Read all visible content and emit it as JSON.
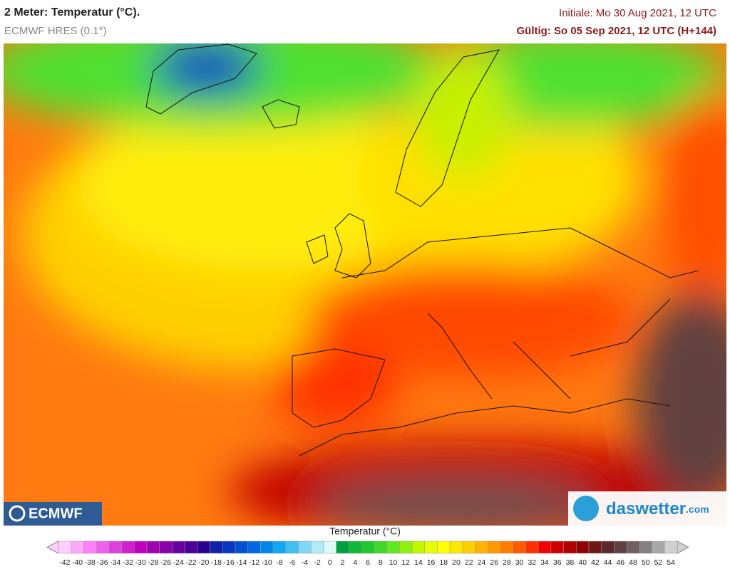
{
  "header": {
    "title": "2 Meter: Temperatur (°C).",
    "subtitle": "ECMWF HRES (0.1°)",
    "initial": "Initiale: Mo 30 Aug 2021, 12 UTC",
    "valid": "Gültig: So 05 Sep 2021, 12 UTC (H+144)"
  },
  "logos": {
    "left": "ECMWF",
    "right": "daswetter",
    "right_suffix": ".com"
  },
  "legend": {
    "title": "Temperatur (°C)",
    "values": [
      -42,
      -40,
      -38,
      -36,
      -34,
      -32,
      -30,
      -28,
      -26,
      -24,
      -22,
      -20,
      -18,
      -16,
      -14,
      -12,
      -10,
      -8,
      -6,
      -4,
      -2,
      0,
      2,
      4,
      6,
      8,
      10,
      12,
      14,
      16,
      18,
      20,
      22,
      24,
      26,
      28,
      30,
      32,
      34,
      36,
      38,
      40,
      42,
      44,
      46,
      48,
      50,
      52,
      54
    ],
    "colors": [
      "#ffd0ff",
      "#ffa8ff",
      "#ff80ff",
      "#f060f0",
      "#e040e0",
      "#d020d0",
      "#c000c0",
      "#a000b0",
      "#8800a8",
      "#6a00a0",
      "#4c0098",
      "#2a0090",
      "#1020a8",
      "#0838c0",
      "#0050d0",
      "#0068e0",
      "#0088e8",
      "#10a8f0",
      "#40c0f0",
      "#80d8f8",
      "#b0ecf8",
      "#e0fafa",
      "#00a040",
      "#10b838",
      "#20c830",
      "#40d828",
      "#60e820",
      "#90f010",
      "#c0f800",
      "#e8ff00",
      "#ffff00",
      "#ffe800",
      "#ffd000",
      "#ffb400",
      "#ff9800",
      "#ff7c00",
      "#ff5a00",
      "#ff3000",
      "#f00000",
      "#d00000",
      "#b00000",
      "#900000",
      "#701818",
      "#5a2a2a",
      "#604040",
      "#706060",
      "#888080",
      "#a8a8a8",
      "#d0d0d0"
    ]
  }
}
